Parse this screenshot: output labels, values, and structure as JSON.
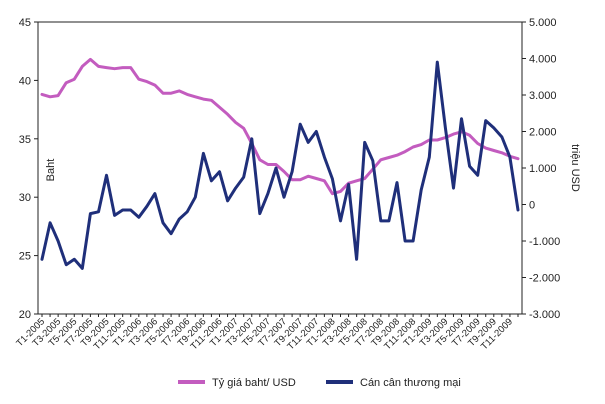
{
  "chart_data": {
    "type": "line",
    "categories": [
      "T1-2005",
      "T2-2005",
      "T3-2005",
      "T4-2005",
      "T5-2005",
      "T6-2005",
      "T7-2005",
      "T8-2005",
      "T9-2005",
      "T10-2005",
      "T11-2005",
      "T12-2005",
      "T1-2006",
      "T2-2006",
      "T3-2006",
      "T4-2006",
      "T5-2006",
      "T6-2006",
      "T7-2006",
      "T8-2006",
      "T9-2006",
      "T10-2006",
      "T11-2006",
      "T12-2006",
      "T1-2007",
      "T2-2007",
      "T3-2007",
      "T4-2007",
      "T5-2007",
      "T6-2007",
      "T7-2007",
      "T8-2007",
      "T9-2007",
      "T10-2007",
      "T11-2007",
      "T12-2007",
      "T1-2008",
      "T2-2008",
      "T3-2008",
      "T4-2008",
      "T5-2008",
      "T6-2008",
      "T7-2008",
      "T8-2008",
      "T9-2008",
      "T10-2008",
      "T11-2008",
      "T12-2008",
      "T1-2009",
      "T2-2009",
      "T3-2009",
      "T4-2009",
      "T5-2009",
      "T6-2009",
      "T7-2009",
      "T8-2009",
      "T9-2009",
      "T10-2009",
      "T11-2009",
      "T12-2009"
    ],
    "x_tick_labels": [
      "T1-2005",
      "T3-2005",
      "T5-2005",
      "T7-2005",
      "T9-2005",
      "T11-2005",
      "T1-2006",
      "T3-2006",
      "T5-2006",
      "T7-2006",
      "T9-2006",
      "T11-2006",
      "T1-2007",
      "T3-2007",
      "T5-2007",
      "T7-2007",
      "T9-2007",
      "T11-2007",
      "T1-2008",
      "T3-2008",
      "T5-2008",
      "T7-2008",
      "T9-2008",
      "T11-2008",
      "T1-2009",
      "T3-2009",
      "T5-2009",
      "T7-2009",
      "T9-2009",
      "T11-2009"
    ],
    "y_left": {
      "label": "Baht",
      "ticks": [
        "20",
        "25",
        "30",
        "35",
        "40",
        "45"
      ],
      "range": [
        20,
        45
      ]
    },
    "y_right": {
      "label": "triệu USD",
      "ticks": [
        "-3.000",
        "-2.000",
        "-1.000",
        "0",
        "1.000",
        "2.000",
        "3.000",
        "4.000",
        "5.000"
      ],
      "range": [
        -3000,
        5000
      ]
    },
    "series": [
      {
        "name": "Tỷ giá baht/ USD",
        "axis": "left",
        "color": "#c35cbf",
        "values": [
          38.8,
          38.6,
          38.7,
          39.8,
          40.1,
          41.2,
          41.8,
          41.2,
          41.1,
          41.0,
          41.1,
          41.1,
          40.1,
          39.9,
          39.6,
          38.9,
          38.9,
          39.1,
          38.8,
          38.6,
          38.4,
          38.3,
          37.7,
          37.1,
          36.4,
          35.9,
          34.6,
          33.2,
          32.8,
          32.8,
          32.2,
          31.5,
          31.5,
          31.8,
          31.6,
          31.4,
          30.3,
          30.5,
          31.2,
          31.4,
          31.6,
          32.4,
          33.2,
          33.4,
          33.6,
          33.9,
          34.3,
          34.5,
          34.9,
          34.9,
          35.1,
          35.4,
          35.6,
          35.3,
          34.6,
          34.2,
          34.0,
          33.8,
          33.5,
          33.3
        ]
      },
      {
        "name": "Cán cân thương mại",
        "axis": "right",
        "color": "#1f2f7a",
        "values": [
          -1500,
          -500,
          -1000,
          -1650,
          -1500,
          -1750,
          -250,
          -200,
          800,
          -300,
          -150,
          -150,
          -350,
          -50,
          300,
          -500,
          -800,
          -400,
          -200,
          200,
          1400,
          650,
          900,
          100,
          450,
          750,
          1800,
          -250,
          300,
          1000,
          200,
          900,
          2200,
          1700,
          2000,
          1300,
          700,
          -450,
          550,
          -1500,
          1700,
          1200,
          -450,
          -450,
          600,
          -1000,
          -1000,
          400,
          1300,
          3900,
          2100,
          450,
          2350,
          1050,
          800,
          2300,
          2100,
          1850,
          1300,
          -150
        ]
      }
    ],
    "legend_position": "bottom",
    "grid": false
  }
}
